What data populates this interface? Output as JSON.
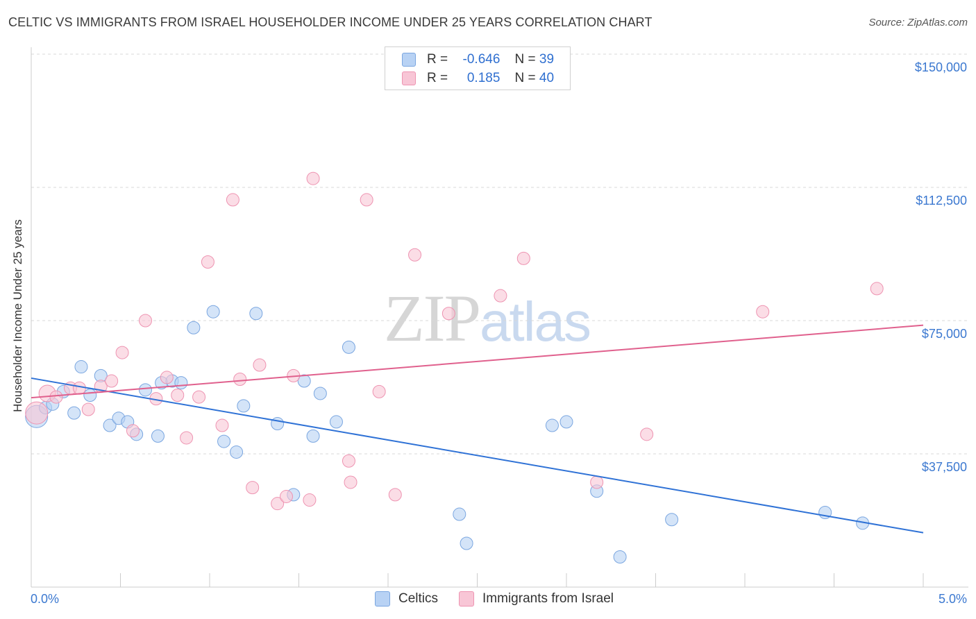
{
  "title": "CELTIC VS IMMIGRANTS FROM ISRAEL HOUSEHOLDER INCOME UNDER 25 YEARS CORRELATION CHART",
  "source": "Source: ZipAtlas.com",
  "watermark": {
    "zip": "ZIP",
    "atlas": "atlas"
  },
  "legend": {
    "rows": [
      {
        "r_label": "R =",
        "r_value": "-0.646",
        "n_label": "N =",
        "n_value": "39"
      },
      {
        "r_label": "R =",
        "r_value": "0.185",
        "n_label": "N =",
        "n_value": "40"
      }
    ]
  },
  "colors": {
    "celtics_fill": "#b8d2f4",
    "celtics_stroke": "#7aa6e0",
    "celtics_line": "#2f72d6",
    "israel_fill": "#f8c6d6",
    "israel_stroke": "#ee93b1",
    "israel_line": "#e0608d",
    "axis_label": "#3b78d0",
    "grid": "#d8d8d8"
  },
  "chart_data": {
    "type": "scatter",
    "title": "CELTIC VS IMMIGRANTS FROM ISRAEL HOUSEHOLDER INCOME UNDER 25 YEARS CORRELATION CHART",
    "xlabel": "",
    "ylabel": "Householder Income Under 25 years",
    "xlim": [
      0,
      5
    ],
    "ylim": [
      0,
      153750
    ],
    "x_tick_labels": [
      "0.0%",
      "5.0%"
    ],
    "y_ticks": [
      37500,
      75000,
      112500,
      150000
    ],
    "y_tick_labels": [
      "$37,500",
      "$75,000",
      "$112,500",
      "$150,000"
    ],
    "grid": true,
    "legend_position": "top-center",
    "series": [
      {
        "name": "Celtics",
        "r": -0.646,
        "n": 39,
        "trend": {
          "x0": 0,
          "y0": 58800,
          "x1": 5,
          "y1": 15300
        },
        "points": [
          [
            0.03,
            48000,
            16
          ],
          [
            0.08,
            50500,
            9
          ],
          [
            0.12,
            51500,
            9
          ],
          [
            0.18,
            55000,
            9
          ],
          [
            0.24,
            49000,
            9
          ],
          [
            0.28,
            62000,
            9
          ],
          [
            0.33,
            54000,
            9
          ],
          [
            0.39,
            59500,
            9
          ],
          [
            0.44,
            45500,
            9
          ],
          [
            0.49,
            47500,
            9
          ],
          [
            0.54,
            46500,
            9
          ],
          [
            0.59,
            43000,
            9
          ],
          [
            0.64,
            55500,
            9
          ],
          [
            0.71,
            42500,
            9
          ],
          [
            0.73,
            57500,
            9
          ],
          [
            0.79,
            58000,
            9
          ],
          [
            0.84,
            57500,
            9
          ],
          [
            0.91,
            73000,
            9
          ],
          [
            1.02,
            77500,
            9
          ],
          [
            1.08,
            41000,
            9
          ],
          [
            1.15,
            38000,
            9
          ],
          [
            1.19,
            51000,
            9
          ],
          [
            1.26,
            77000,
            9
          ],
          [
            1.38,
            46000,
            9
          ],
          [
            1.47,
            26000,
            9
          ],
          [
            1.53,
            58000,
            9
          ],
          [
            1.58,
            42500,
            9
          ],
          [
            1.62,
            54500,
            9
          ],
          [
            1.71,
            46500,
            9
          ],
          [
            1.78,
            67500,
            9
          ],
          [
            2.4,
            20500,
            9
          ],
          [
            2.44,
            12300,
            9
          ],
          [
            2.92,
            45500,
            9
          ],
          [
            3.0,
            46500,
            9
          ],
          [
            3.17,
            27000,
            9
          ],
          [
            3.3,
            8500,
            9
          ],
          [
            3.59,
            19000,
            9
          ],
          [
            4.45,
            21000,
            9
          ],
          [
            4.66,
            18000,
            9
          ]
        ]
      },
      {
        "name": "Immigrants from Israel",
        "r": 0.185,
        "n": 40,
        "trend": {
          "x0": 0,
          "y0": 53300,
          "x1": 5,
          "y1": 73700
        },
        "points": [
          [
            0.03,
            49000,
            16
          ],
          [
            0.09,
            54500,
            12
          ],
          [
            0.14,
            53500,
            9
          ],
          [
            0.22,
            56000,
            9
          ],
          [
            0.27,
            56000,
            9
          ],
          [
            0.32,
            50000,
            9
          ],
          [
            0.39,
            56500,
            9
          ],
          [
            0.45,
            58000,
            9
          ],
          [
            0.51,
            66000,
            9
          ],
          [
            0.57,
            44000,
            9
          ],
          [
            0.64,
            75000,
            9
          ],
          [
            0.7,
            53000,
            9
          ],
          [
            0.76,
            59000,
            9
          ],
          [
            0.82,
            54000,
            9
          ],
          [
            0.87,
            42000,
            9
          ],
          [
            0.94,
            53500,
            9
          ],
          [
            0.99,
            91500,
            9
          ],
          [
            1.07,
            45500,
            9
          ],
          [
            1.13,
            109000,
            9
          ],
          [
            1.17,
            58500,
            9
          ],
          [
            1.24,
            28000,
            9
          ],
          [
            1.28,
            62500,
            9
          ],
          [
            1.38,
            23500,
            9
          ],
          [
            1.43,
            25500,
            9
          ],
          [
            1.47,
            59500,
            9
          ],
          [
            1.56,
            24500,
            9
          ],
          [
            1.58,
            115000,
            9
          ],
          [
            1.78,
            35500,
            9
          ],
          [
            1.79,
            29500,
            9
          ],
          [
            1.88,
            109000,
            9
          ],
          [
            1.95,
            55000,
            9
          ],
          [
            2.04,
            26000,
            9
          ],
          [
            2.15,
            93500,
            9
          ],
          [
            2.34,
            77000,
            9
          ],
          [
            2.63,
            82000,
            9
          ],
          [
            2.76,
            92500,
            9
          ],
          [
            3.17,
            29500,
            9
          ],
          [
            3.45,
            43000,
            9
          ],
          [
            4.1,
            77500,
            9
          ],
          [
            4.74,
            84000,
            9
          ]
        ]
      }
    ]
  }
}
